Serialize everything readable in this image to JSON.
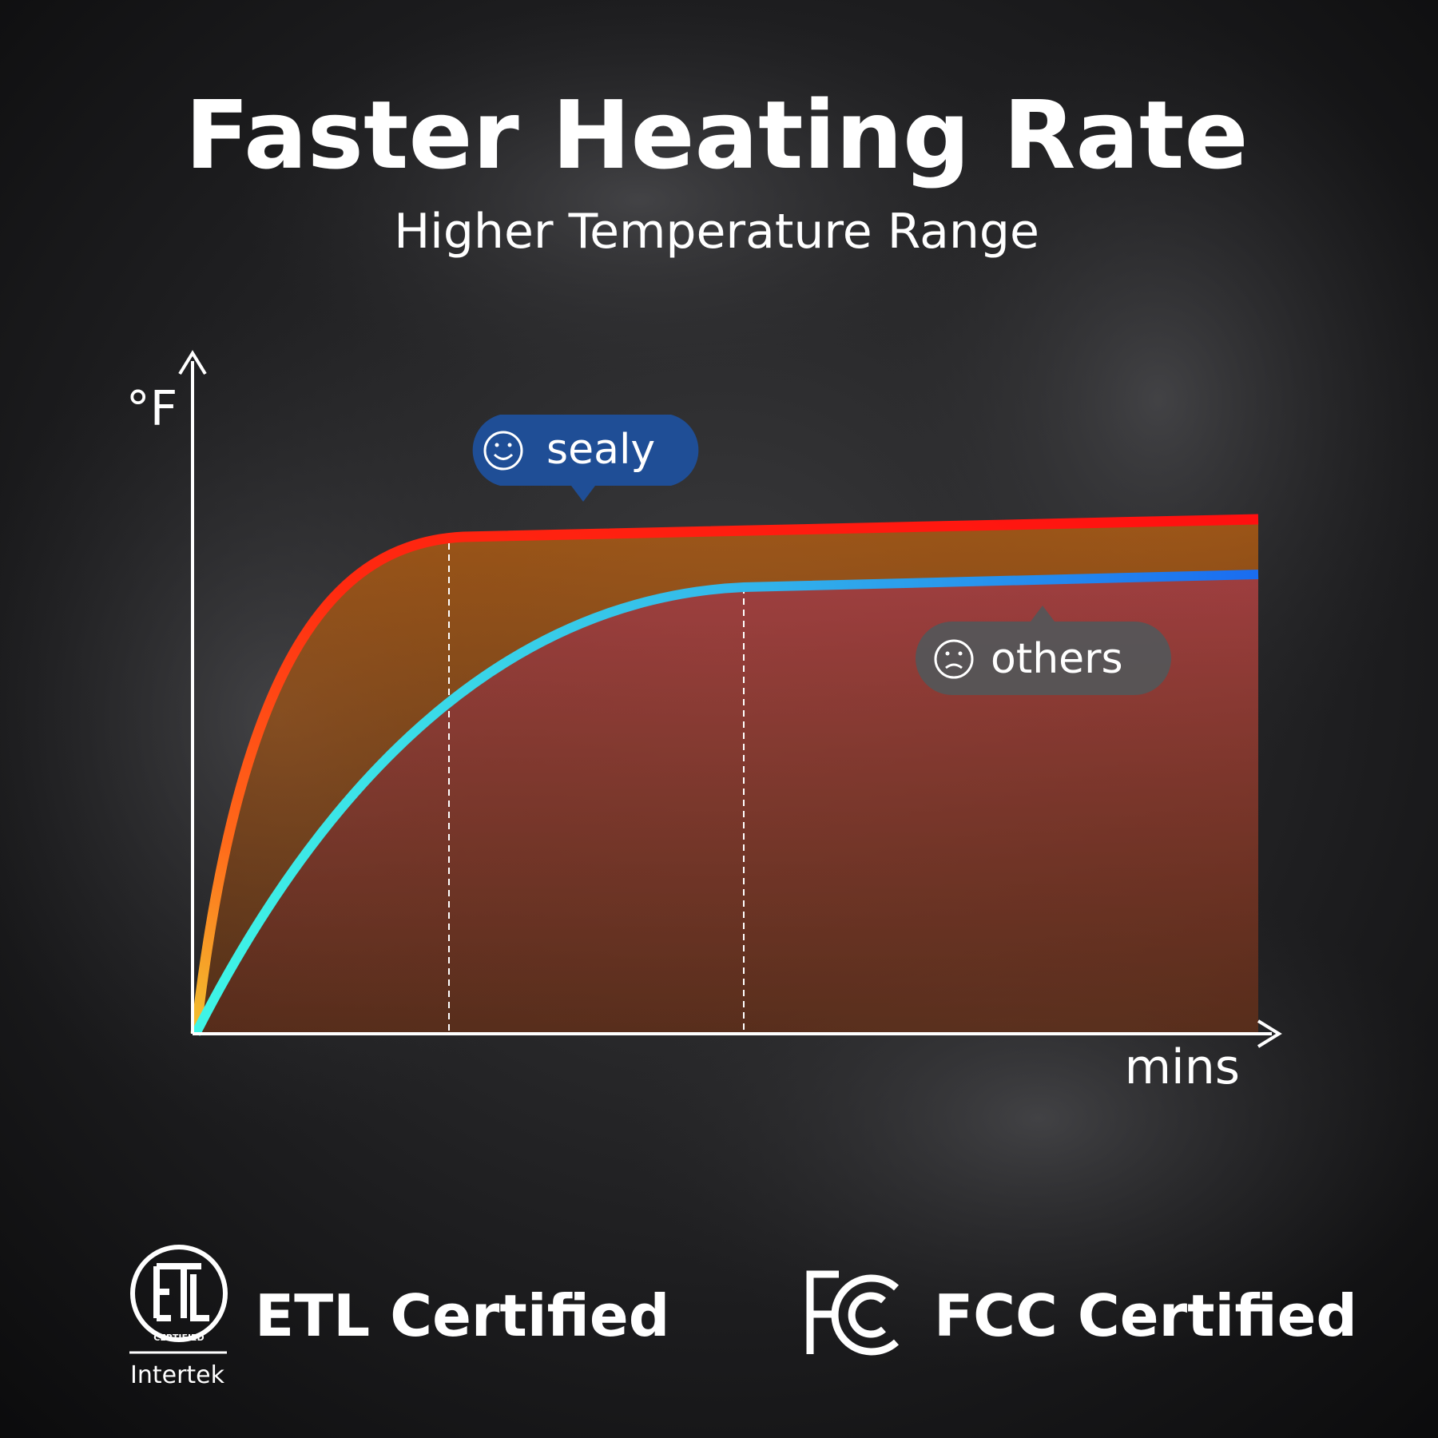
{
  "header": {
    "title": "Faster Heating Rate",
    "subtitle": "Higher Temperature Range"
  },
  "graph": {
    "y_label": "°F",
    "x_label": "mins",
    "labels": [
      "sealy",
      "others"
    ]
  },
  "badges": [
    {
      "label": "ETL Certified",
      "logo_text": "CERTIFIED",
      "maker": "Intertek"
    },
    {
      "label": "FCC Certified"
    }
  ]
}
